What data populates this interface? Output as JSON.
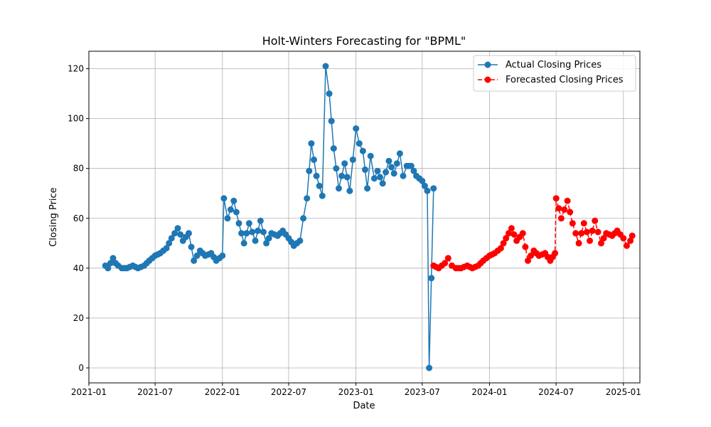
{
  "chart_data": {
    "type": "line",
    "title": "Holt-Winters Forecasting for \"BPML\"",
    "xlabel": "Date",
    "ylabel": "Closing Price",
    "x_tick_labels": [
      "2021-01",
      "2021-07",
      "2022-01",
      "2022-07",
      "2023-01",
      "2023-07",
      "2024-01",
      "2024-07",
      "2025-01"
    ],
    "x_ticks": [
      "2021-01-01",
      "2021-07-01",
      "2022-01-01",
      "2022-07-01",
      "2023-01-01",
      "2023-07-01",
      "2024-01-01",
      "2024-07-01",
      "2025-01-01"
    ],
    "y_ticks": [
      0,
      20,
      40,
      60,
      80,
      100,
      120
    ],
    "xlim": [
      "2021-01-01",
      "2025-02-15"
    ],
    "ylim": [
      -6,
      127
    ],
    "grid": true,
    "legend_position": "top-right",
    "colors": {
      "actual": "#1f77b4",
      "forecast": "#ff0000",
      "grid": "#b0b0b0"
    },
    "series": [
      {
        "name": "Actual Closing Prices",
        "style": "solid line with circle markers",
        "points": [
          [
            "2021-02-15",
            41
          ],
          [
            "2021-02-22",
            40
          ],
          [
            "2021-03-01",
            42
          ],
          [
            "2021-03-08",
            44
          ],
          [
            "2021-03-15",
            42
          ],
          [
            "2021-03-22",
            41
          ],
          [
            "2021-04-01",
            40
          ],
          [
            "2021-04-15",
            40
          ],
          [
            "2021-05-01",
            41
          ],
          [
            "2021-05-15",
            40
          ],
          [
            "2021-06-01",
            41
          ],
          [
            "2021-06-15",
            43
          ],
          [
            "2021-07-01",
            45
          ],
          [
            "2021-07-15",
            46
          ],
          [
            "2021-08-01",
            48
          ],
          [
            "2021-08-15",
            52
          ],
          [
            "2021-09-01",
            56
          ],
          [
            "2021-09-15",
            51
          ],
          [
            "2021-10-01",
            54
          ],
          [
            "2021-10-15",
            43
          ],
          [
            "2021-11-01",
            47
          ],
          [
            "2021-11-15",
            45
          ],
          [
            "2021-12-01",
            46
          ],
          [
            "2021-12-15",
            43
          ],
          [
            "2022-01-01",
            45
          ],
          [
            "2022-01-05",
            68
          ],
          [
            "2022-01-15",
            60
          ],
          [
            "2022-02-01",
            67
          ],
          [
            "2022-02-15",
            58
          ],
          [
            "2022-03-01",
            50
          ],
          [
            "2022-03-15",
            58
          ],
          [
            "2022-04-01",
            51
          ],
          [
            "2022-04-15",
            59
          ],
          [
            "2022-05-01",
            50
          ],
          [
            "2022-05-15",
            54
          ],
          [
            "2022-06-01",
            53
          ],
          [
            "2022-06-15",
            55
          ],
          [
            "2022-07-01",
            52
          ],
          [
            "2022-07-15",
            49
          ],
          [
            "2022-08-01",
            51
          ],
          [
            "2022-08-10",
            60
          ],
          [
            "2022-08-20",
            68
          ],
          [
            "2022-09-01",
            90
          ],
          [
            "2022-09-15",
            77
          ],
          [
            "2022-10-01",
            69
          ],
          [
            "2022-10-10",
            121
          ],
          [
            "2022-10-20",
            110
          ],
          [
            "2022-11-01",
            88
          ],
          [
            "2022-11-15",
            72
          ],
          [
            "2022-12-01",
            82
          ],
          [
            "2022-12-15",
            71
          ],
          [
            "2023-01-01",
            96
          ],
          [
            "2023-01-10",
            90
          ],
          [
            "2023-01-20",
            87
          ],
          [
            "2023-02-01",
            72
          ],
          [
            "2023-02-10",
            85
          ],
          [
            "2023-02-20",
            76
          ],
          [
            "2023-03-01",
            79
          ],
          [
            "2023-03-15",
            74
          ],
          [
            "2023-04-01",
            83
          ],
          [
            "2023-04-15",
            78
          ],
          [
            "2023-05-01",
            86
          ],
          [
            "2023-05-10",
            77
          ],
          [
            "2023-05-20",
            81
          ],
          [
            "2023-06-01",
            81
          ],
          [
            "2023-06-15",
            77
          ],
          [
            "2023-07-01",
            75
          ],
          [
            "2023-07-15",
            71
          ],
          [
            "2023-07-20",
            0
          ],
          [
            "2023-08-01",
            72
          ]
        ]
      },
      {
        "name": "Forecasted Closing Prices",
        "style": "dashed line with circle markers",
        "points": [
          [
            "2023-08-01",
            41
          ],
          [
            "2023-08-15",
            40
          ],
          [
            "2023-09-01",
            42
          ],
          [
            "2023-09-10",
            44
          ],
          [
            "2023-09-20",
            41
          ],
          [
            "2023-10-01",
            40
          ],
          [
            "2023-10-15",
            40
          ],
          [
            "2023-11-01",
            41
          ],
          [
            "2023-11-15",
            40
          ],
          [
            "2023-12-01",
            41
          ],
          [
            "2023-12-15",
            43
          ],
          [
            "2024-01-01",
            45
          ],
          [
            "2024-01-15",
            46
          ],
          [
            "2024-02-01",
            48
          ],
          [
            "2024-02-15",
            52
          ],
          [
            "2024-03-01",
            56
          ],
          [
            "2024-03-15",
            51
          ],
          [
            "2024-04-01",
            54
          ],
          [
            "2024-04-15",
            43
          ],
          [
            "2024-05-01",
            47
          ],
          [
            "2024-05-15",
            45
          ],
          [
            "2024-06-01",
            46
          ],
          [
            "2024-06-15",
            43
          ],
          [
            "2024-06-28",
            46
          ],
          [
            "2024-07-01",
            68
          ],
          [
            "2024-07-15",
            60
          ],
          [
            "2024-08-01",
            67
          ],
          [
            "2024-08-15",
            58
          ],
          [
            "2024-09-01",
            50
          ],
          [
            "2024-09-15",
            58
          ],
          [
            "2024-10-01",
            51
          ],
          [
            "2024-10-15",
            59
          ],
          [
            "2024-11-01",
            50
          ],
          [
            "2024-11-15",
            54
          ],
          [
            "2024-12-01",
            53
          ],
          [
            "2024-12-15",
            55
          ],
          [
            "2025-01-01",
            52
          ],
          [
            "2025-01-10",
            49
          ],
          [
            "2025-01-20",
            51
          ],
          [
            "2025-01-25",
            53
          ]
        ]
      }
    ]
  }
}
